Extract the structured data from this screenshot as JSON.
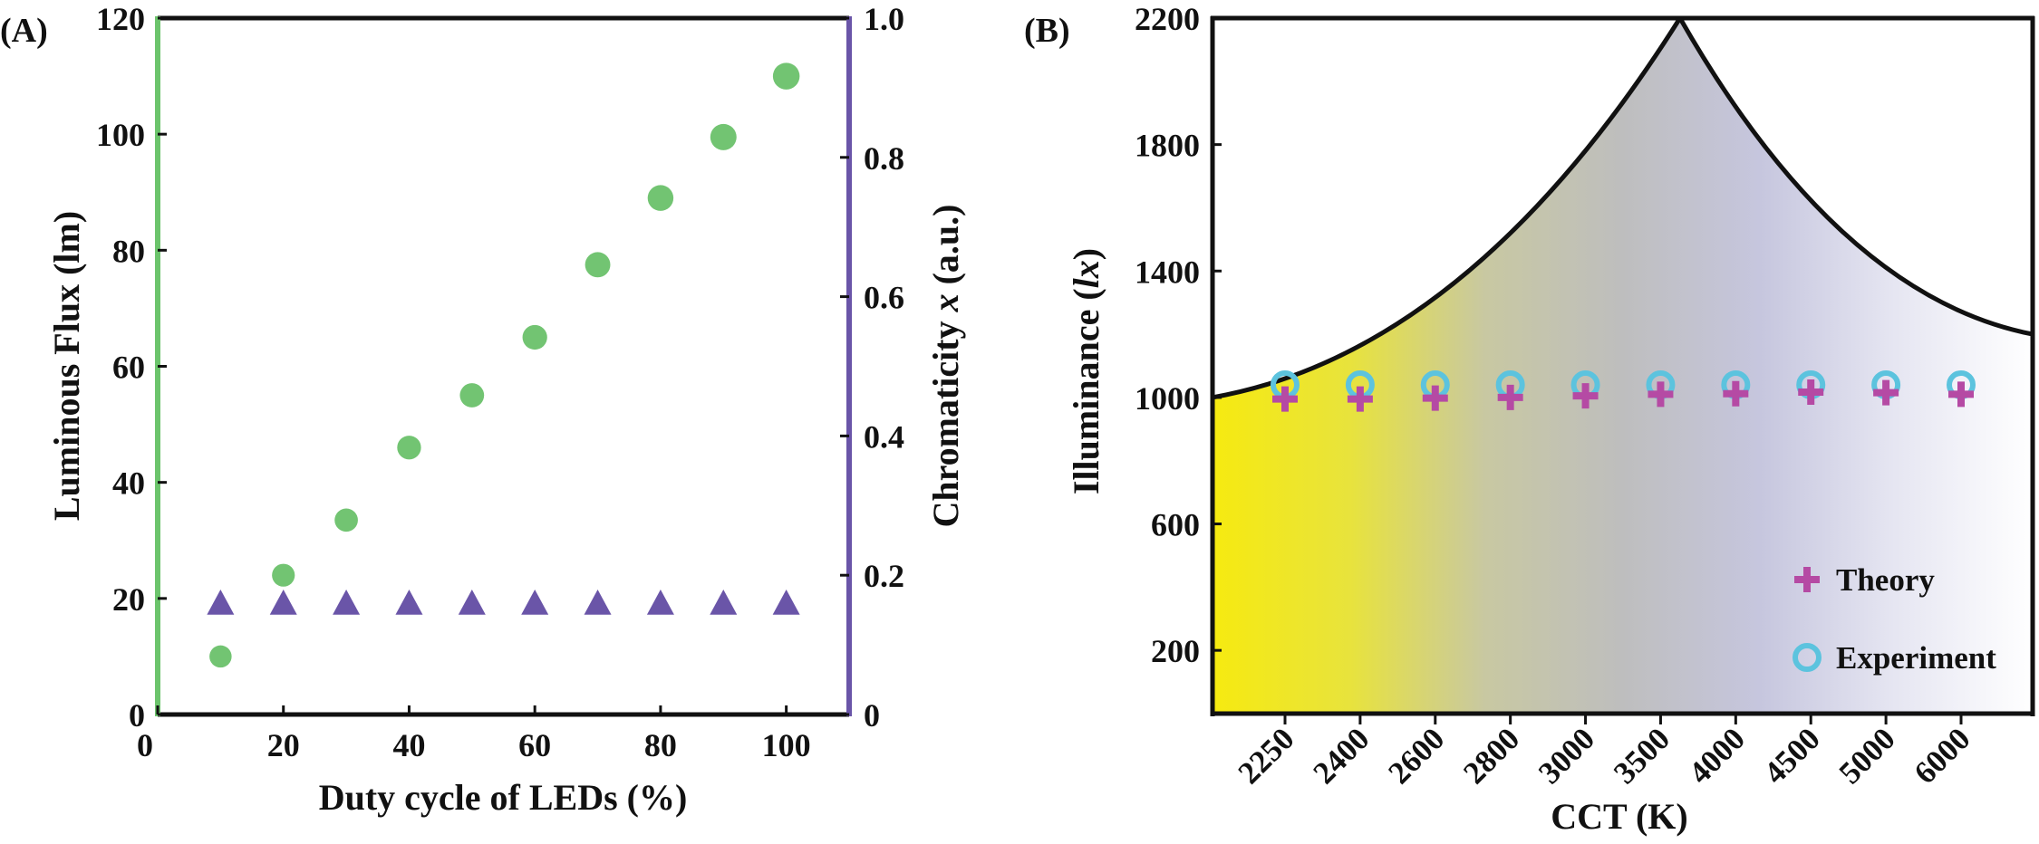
{
  "chart_data": [
    {
      "panel_label": "(A)",
      "type": "scatter",
      "xlabel": "Duty cycle of  LEDs (%)",
      "ylabel": "Luminous Flux (lm)",
      "y2label_prefix": "Chromaticity ",
      "y2label_var": "x",
      "y2label_suffix": " (a.u.)",
      "xlim": [
        0,
        110
      ],
      "ylim": [
        0,
        120
      ],
      "y2lim": [
        0,
        1.0
      ],
      "xticks": [
        "0",
        "20",
        "40",
        "60",
        "80",
        "100"
      ],
      "yticks": [
        "0",
        "20",
        "40",
        "60",
        "80",
        "100",
        "120"
      ],
      "y2ticks": [
        "0",
        "0.2",
        "0.4",
        "0.6",
        "0.8",
        "1.0"
      ],
      "grid": false,
      "colors": {
        "left_axis": "#6cc46c",
        "right_axis": "#6a55a8",
        "flux": "#72c472",
        "chroma": "#6a55a8"
      },
      "series": [
        {
          "axis": "left",
          "marker": "circle",
          "x": [
            10,
            20,
            30,
            40,
            50,
            60,
            70,
            80,
            90,
            100
          ],
          "y": [
            10,
            24,
            33.5,
            46,
            55,
            65,
            77.5,
            89,
            99.5,
            110
          ]
        },
        {
          "axis": "right",
          "marker": "triangle",
          "x": [
            10,
            20,
            30,
            40,
            50,
            60,
            70,
            80,
            90,
            100
          ],
          "y": [
            0.16,
            0.16,
            0.16,
            0.16,
            0.16,
            0.16,
            0.16,
            0.16,
            0.16,
            0.16
          ]
        }
      ]
    },
    {
      "panel_label": "(B)",
      "type": "scatter",
      "xlabel": "CCT (K)",
      "ylabel_prefix": "Illuminance (",
      "ylabel_var": "lx",
      "ylabel_suffix": ")",
      "ylim": [
        0,
        2200
      ],
      "categories": [
        "2250",
        "2400",
        "2600",
        "2800",
        "3000",
        "3500",
        "4000",
        "4500",
        "5000",
        "6000"
      ],
      "yticks": [
        "200",
        "600",
        "1000",
        "1400",
        "1800",
        "2200"
      ],
      "grid": false,
      "legend_position": "bottom-right",
      "boundary_curve": {
        "x_fraction": [
          0,
          0.57,
          1
        ],
        "y": [
          1000,
          2200,
          1200
        ]
      },
      "gradient_colors": [
        "#f6ea10",
        "#e8e33c",
        "#c8c8a2",
        "#bebebe",
        "#c6c6de",
        "#e6e6f2",
        "#ffffff"
      ],
      "colors": {
        "theory": "#b54aa4",
        "experiment": "#5cc3de"
      },
      "series": [
        {
          "name": "Theory",
          "marker": "plus",
          "values": [
            995,
            995,
            998,
            1000,
            1005,
            1010,
            1012,
            1017,
            1015,
            1010
          ]
        },
        {
          "name": "Experiment",
          "marker": "circle-open",
          "values": [
            1040,
            1040,
            1040,
            1040,
            1040,
            1040,
            1040,
            1040,
            1040,
            1040
          ]
        }
      ]
    }
  ]
}
